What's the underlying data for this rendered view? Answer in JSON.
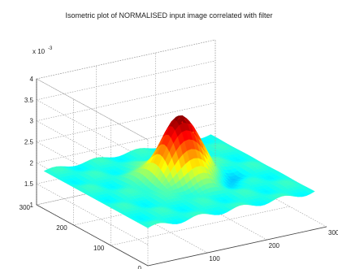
{
  "chart_data": {
    "type": "surface",
    "title": "Isometric plot of NORMALISED input image correlated with filter",
    "exponent_label": "x 10",
    "exponent_power": "-3",
    "xlabel": "",
    "ylabel": "",
    "zlabel": "",
    "z_ticks": [
      "1",
      "1.5",
      "2",
      "2.5",
      "3",
      "3.5",
      "4"
    ],
    "z_values": [
      1,
      1.5,
      2,
      2.5,
      3,
      3.5,
      4
    ],
    "y_ticks": [
      "0",
      "100",
      "200",
      "300"
    ],
    "y_values": [
      0,
      100,
      200,
      300
    ],
    "x_ticks": [
      "0",
      "100",
      "200",
      "300"
    ],
    "x_values": [
      0,
      100,
      200,
      300
    ],
    "xlim": [
      0,
      300
    ],
    "ylim": [
      0,
      300
    ],
    "zlim": [
      0.001,
      0.004
    ],
    "grid": true,
    "colormap": "jet",
    "surface_peak": {
      "x": 150,
      "y": 150,
      "z": 0.0034
    },
    "surface_base": 0.0019,
    "surface_dip": {
      "x": 200,
      "y": 120,
      "z": 0.00165
    }
  }
}
